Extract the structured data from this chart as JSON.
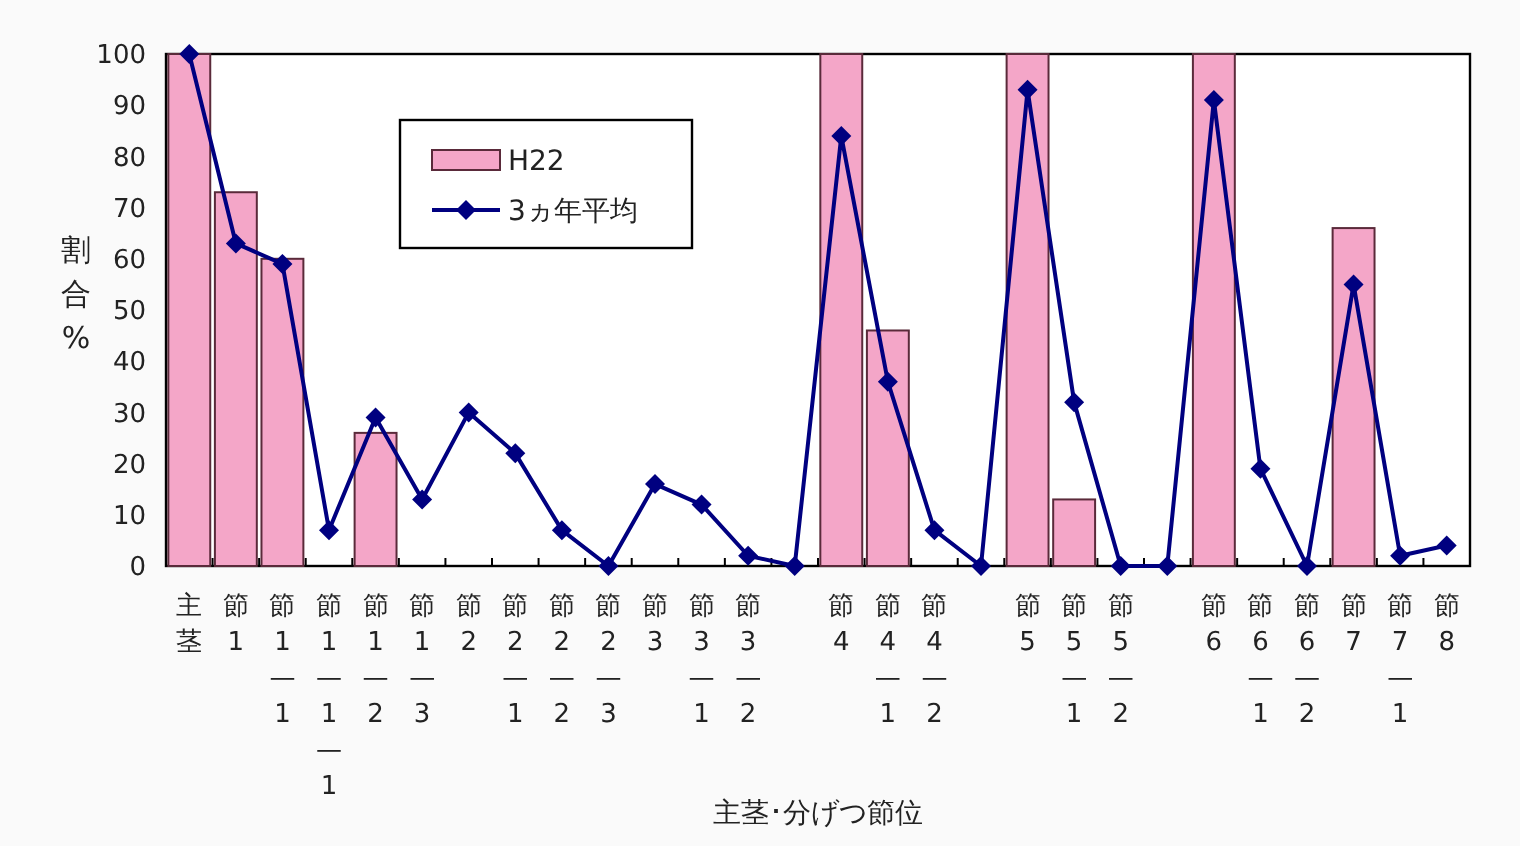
{
  "chart_data": {
    "type": "bar",
    "xlabel": "主茎･分げつ節位",
    "ylabel": "割合%",
    "categories": [
      "主茎",
      "節1",
      "節1—1",
      "節1—1—1",
      "節1—2",
      "節1—3",
      "節2",
      "節2—1",
      "節2—2",
      "節2—3",
      "節3",
      "節3—1",
      "節3—2",
      null,
      "節4",
      "節4—1",
      "節4—2",
      null,
      "節5",
      "節5—1",
      "節5—2",
      null,
      "節6",
      "節6—1",
      "節6—2",
      "節7",
      "節7—1",
      "節8"
    ],
    "series": [
      {
        "name": "H22",
        "color": "#f4a6c8",
        "values": [
          100,
          73,
          60,
          null,
          26,
          null,
          null,
          null,
          null,
          null,
          null,
          null,
          null,
          null,
          100,
          46,
          null,
          null,
          100,
          13,
          null,
          null,
          100,
          null,
          null,
          66,
          null,
          null
        ]
      },
      {
        "name": "3ヵ年平均",
        "type": "line",
        "color": "#000080",
        "values": [
          100,
          63,
          59,
          7,
          29,
          13,
          30,
          22,
          7,
          0,
          16,
          12,
          2,
          0,
          84,
          36,
          7,
          0,
          93,
          32,
          0,
          0,
          91,
          19,
          0,
          55,
          2,
          4
        ]
      }
    ],
    "ylim": [
      0,
      100
    ],
    "yticks": [
      0,
      10,
      20,
      30,
      40,
      50,
      60,
      70,
      80,
      90,
      100
    ],
    "grid": false,
    "legend": "top left",
    "marker": "diamond",
    "line_style": "solid"
  }
}
